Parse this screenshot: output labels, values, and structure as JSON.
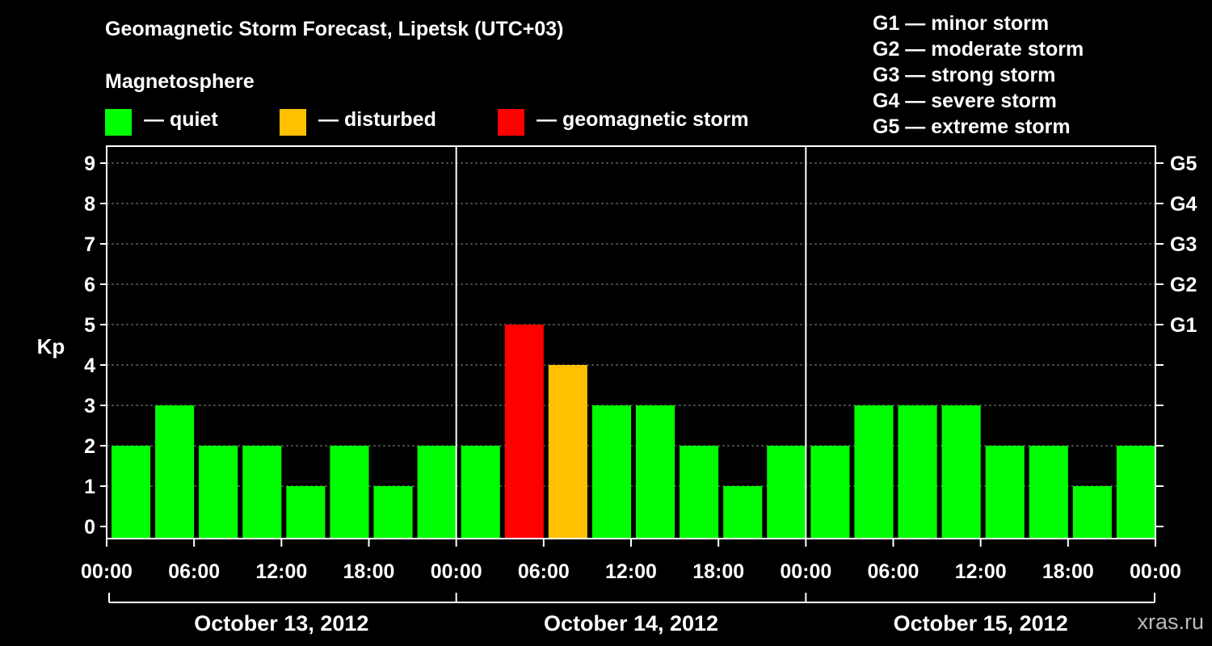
{
  "title": "Geomagnetic Storm Forecast, Lipetsk (UTC+03)",
  "subtitle": "Magnetosphere",
  "watermark": "xras.ru",
  "legend": {
    "quiet": {
      "label": "— quiet",
      "color": "#00ff00"
    },
    "disturbed": {
      "label": "— disturbed",
      "color": "#ffc000"
    },
    "storm": {
      "label": "— geomagnetic storm",
      "color": "#ff0000"
    }
  },
  "storm_scale": [
    "G1 — minor storm",
    "G2 — moderate storm",
    "G3 — strong storm",
    "G4 — severe storm",
    "G5 — extreme storm"
  ],
  "chart_data": {
    "type": "bar",
    "title": "Geomagnetic Storm Forecast, Lipetsk (UTC+03)",
    "ylabel": "Kp",
    "ylim": [
      0,
      9
    ],
    "yticks": [
      "0",
      "1",
      "2",
      "3",
      "4",
      "5",
      "6",
      "7",
      "8",
      "9"
    ],
    "right_axis_ticks": [
      {
        "kp": 5,
        "label": "G1"
      },
      {
        "kp": 6,
        "label": "G2"
      },
      {
        "kp": 7,
        "label": "G3"
      },
      {
        "kp": 8,
        "label": "G4"
      },
      {
        "kp": 9,
        "label": "G5"
      }
    ],
    "xtick_labels": [
      "00:00",
      "06:00",
      "12:00",
      "18:00",
      "00:00",
      "06:00",
      "12:00",
      "18:00",
      "00:00",
      "06:00",
      "12:00",
      "18:00",
      "00:00"
    ],
    "days": [
      "October 13, 2012",
      "October 14, 2012",
      "October 15, 2012"
    ],
    "interval_hours": 3,
    "values": [
      2,
      3,
      2,
      2,
      1,
      2,
      1,
      2,
      2,
      5,
      4,
      3,
      3,
      2,
      1,
      2,
      2,
      3,
      3,
      3,
      2,
      2,
      1,
      2
    ],
    "categories": [
      "quiet",
      "quiet",
      "quiet",
      "quiet",
      "quiet",
      "quiet",
      "quiet",
      "quiet",
      "quiet",
      "storm",
      "disturbed",
      "quiet",
      "quiet",
      "quiet",
      "quiet",
      "quiet",
      "quiet",
      "quiet",
      "quiet",
      "quiet",
      "quiet",
      "quiet",
      "quiet",
      "quiet"
    ]
  }
}
